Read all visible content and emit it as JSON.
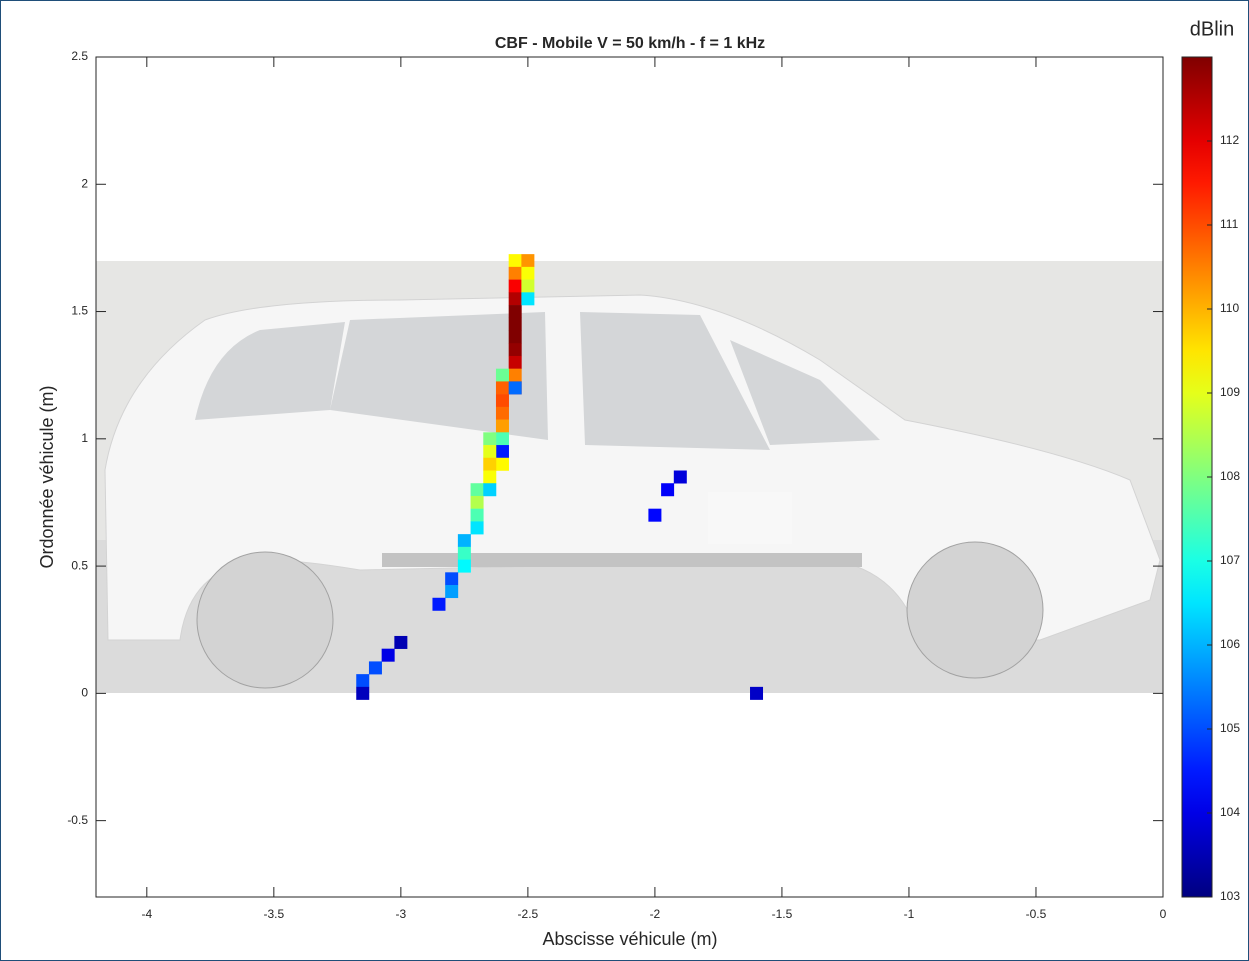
{
  "chart_data": {
    "type": "scatter",
    "title": "CBF - Mobile V = 50 km/h - f = 1 kHz",
    "x_label": "Abscisse véhicule (m)",
    "y_label": "Ordonnée véhicule (m)",
    "colorbar_label": "dBlin",
    "colormap": "jet",
    "clim": [
      103,
      113
    ],
    "colorbar_ticks": [
      103,
      104,
      105,
      106,
      107,
      108,
      109,
      110,
      111,
      112
    ],
    "xlim": [
      -4.2,
      0
    ],
    "ylim": [
      -0.8,
      2.5
    ],
    "xticks": [
      -4,
      -3.5,
      -3,
      -2.5,
      -2,
      -1.5,
      -1,
      -0.5,
      0
    ],
    "yticks": [
      -0.5,
      0,
      0.5,
      1,
      1.5,
      2,
      2.5
    ],
    "x": [
      -2.55,
      -2.55,
      -2.55,
      -2.55,
      -2.55,
      -2.55,
      -2.55,
      -2.55,
      -2.55,
      -2.55,
      -2.55,
      -2.5,
      -2.5,
      -2.5,
      -2.5,
      -2.6,
      -2.6,
      -2.55,
      -2.6,
      -2.6,
      -2.6,
      -2.6,
      -2.65,
      -2.6,
      -2.65,
      -2.6,
      -2.65,
      -2.65,
      -2.7,
      -2.65,
      -2.7,
      -2.7,
      -2.7,
      -2.75,
      -2.75,
      -2.75,
      -2.8,
      -2.8,
      -2.85,
      -3.0,
      -3.05,
      -3.1,
      -3.15,
      -3.15,
      -1.6,
      -2.0,
      -1.95,
      -1.9
    ],
    "y": [
      1.7,
      1.65,
      1.6,
      1.55,
      1.5,
      1.45,
      1.4,
      1.35,
      1.3,
      1.25,
      1.2,
      1.7,
      1.65,
      1.6,
      1.55,
      1.25,
      1.2,
      1.2,
      1.15,
      1.1,
      1.05,
      1.0,
      1.0,
      0.95,
      0.95,
      0.9,
      0.9,
      0.85,
      0.8,
      0.8,
      0.75,
      0.7,
      0.65,
      0.6,
      0.55,
      0.5,
      0.45,
      0.4,
      0.35,
      0.2,
      0.15,
      0.1,
      0.05,
      0.0,
      0.0,
      0.7,
      0.8,
      0.85
    ],
    "values": [
      109.3,
      110.5,
      111.8,
      112.5,
      113,
      113,
      113,
      112.8,
      112.3,
      110.5,
      111.5,
      110.3,
      109.2,
      108.8,
      106.5,
      107.8,
      110.8,
      105.3,
      111,
      110.7,
      110.2,
      107.5,
      108,
      104.5,
      109,
      109.3,
      109.7,
      109.2,
      107.7,
      106.3,
      108.5,
      107.5,
      106.5,
      106,
      107.3,
      106.7,
      105,
      105.8,
      104.5,
      103.5,
      104,
      105,
      105,
      103.6,
      103.7,
      104.3,
      104.2,
      103.9
    ]
  }
}
